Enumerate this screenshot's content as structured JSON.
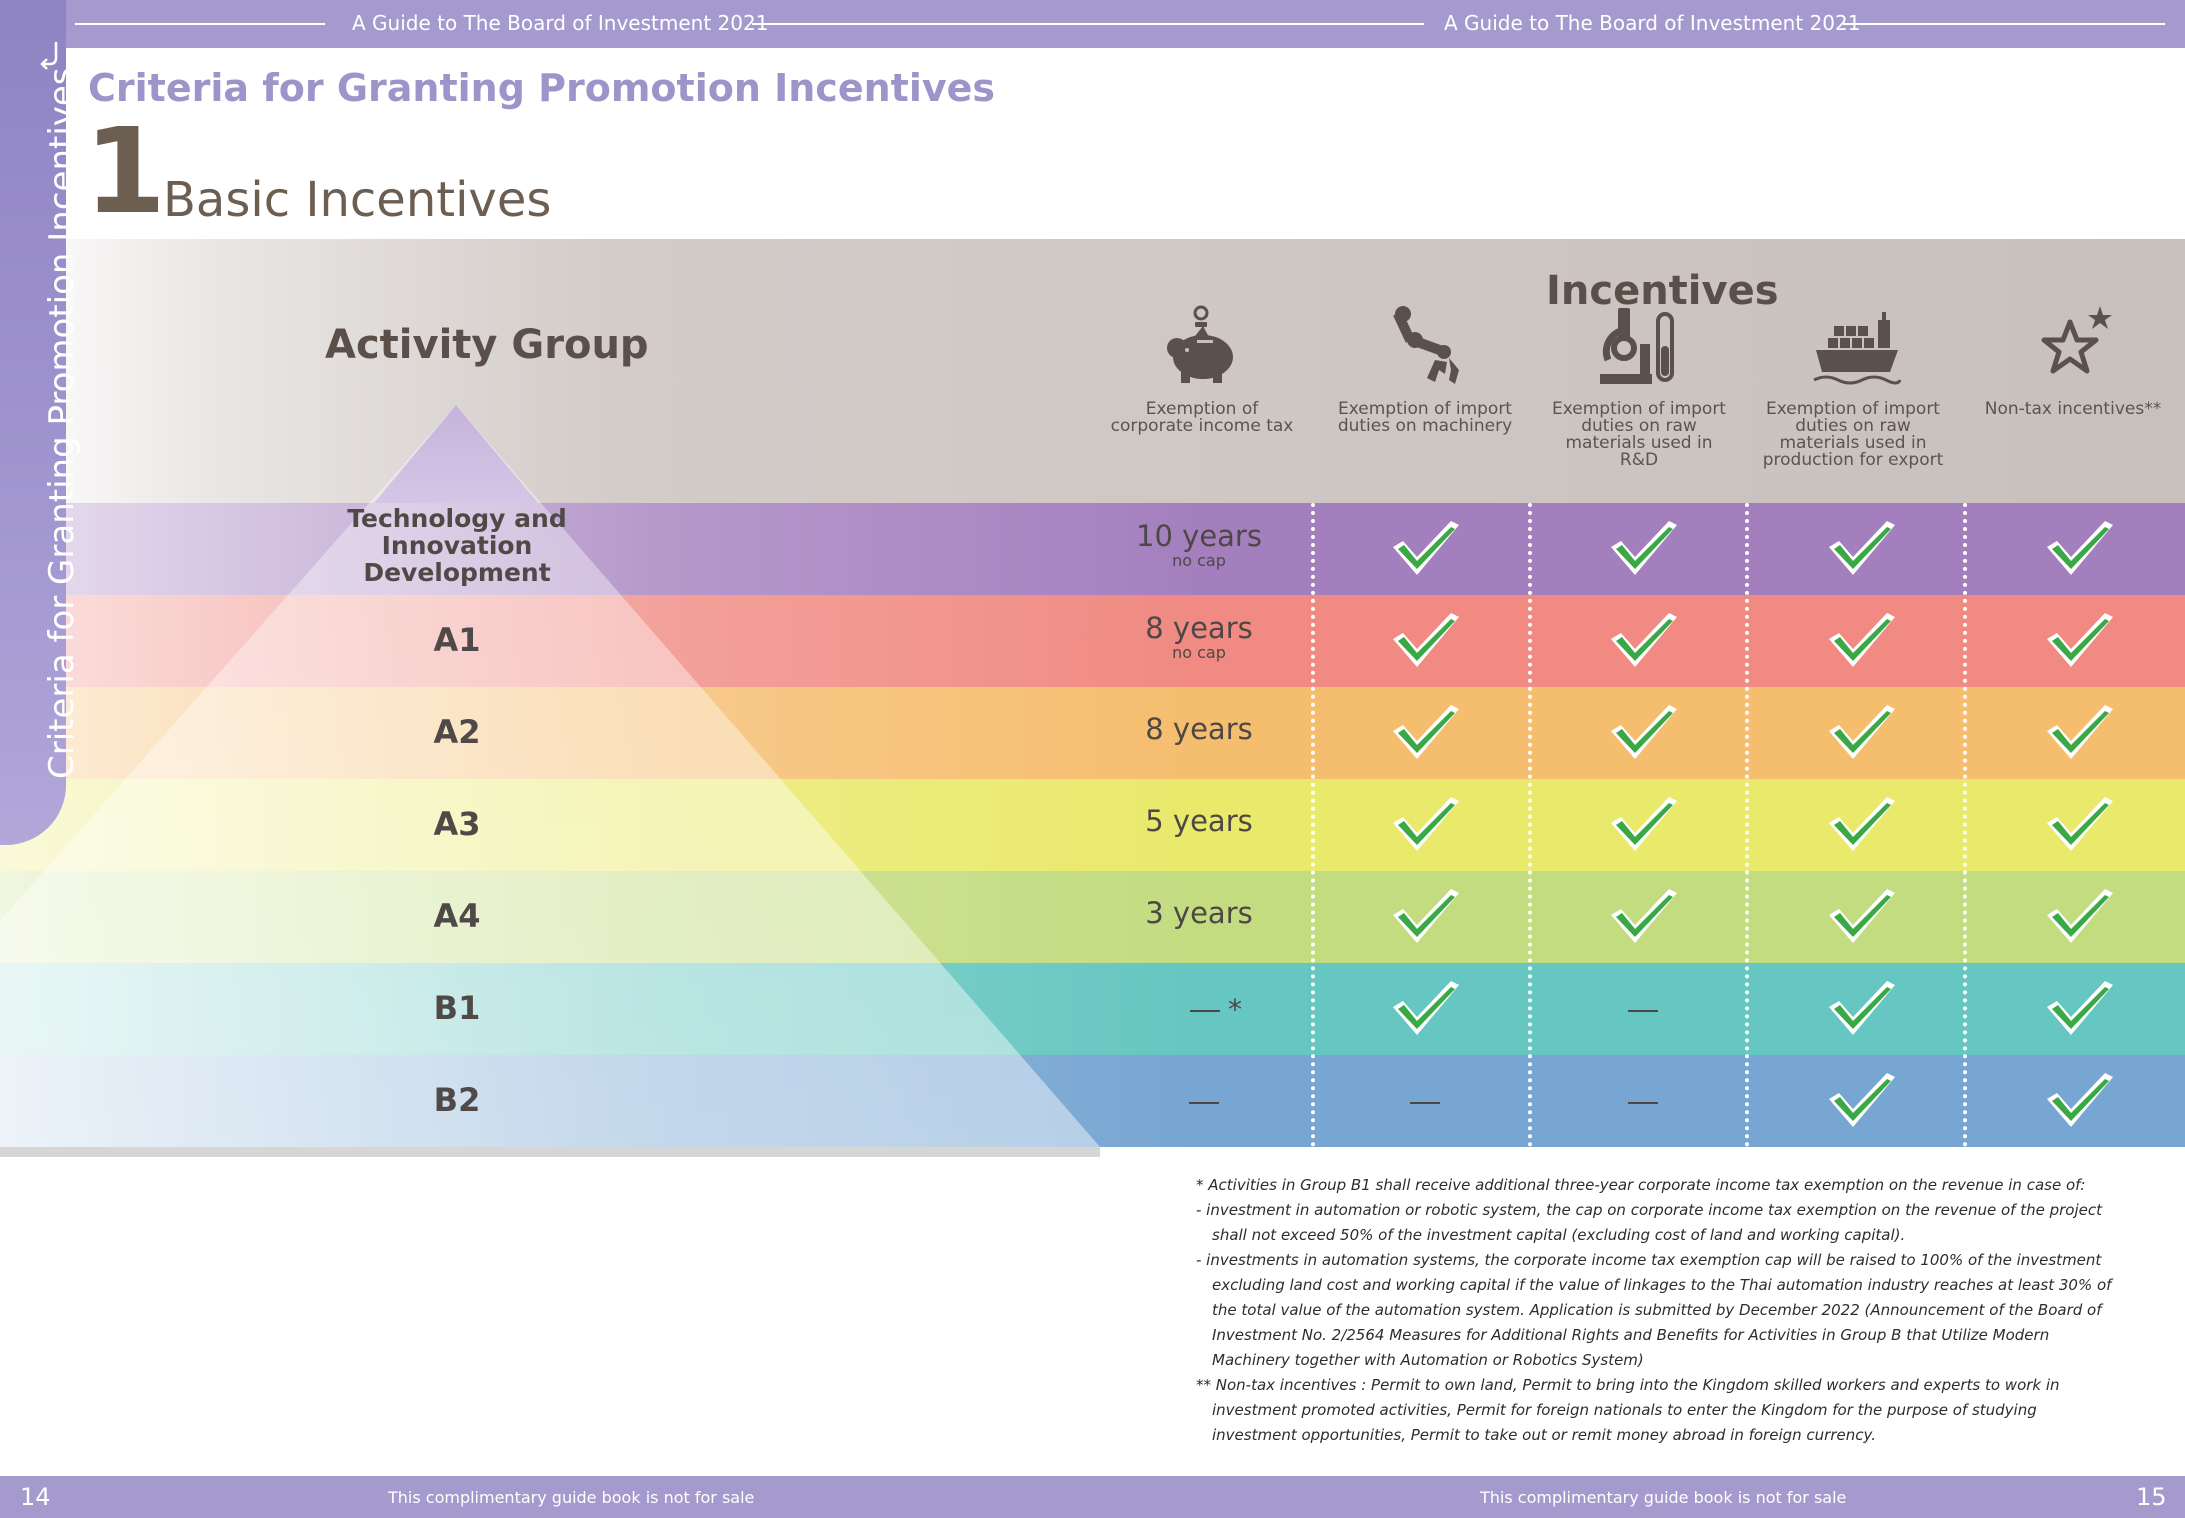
{
  "header": {
    "left_title": "A Guide to The Board of Investment 2021",
    "right_title": "A Guide to The Board of Investment 2021"
  },
  "side_tab": {
    "label": "Criteria for Granting Promotion Incentives"
  },
  "section_title": "Criteria for Granting Promotion Incentives",
  "subsection": {
    "number": "1",
    "title": "Basic Incentives"
  },
  "table": {
    "activity_group_title": "Activity Group",
    "incentives_title": "Incentives",
    "incentive_columns": [
      {
        "icon": "piggy-bank-icon",
        "label": "Exemption of corporate income tax"
      },
      {
        "icon": "robot-arm-icon",
        "label": "Exemption of import duties on machinery"
      },
      {
        "icon": "microscope-icon",
        "label": "Exemption of import duties on raw materials used in R&D"
      },
      {
        "icon": "cargo-ship-icon",
        "label": "Exemption of import duties on raw materials used in production for export"
      },
      {
        "icon": "stars-icon",
        "label": "Non-tax incentives**"
      }
    ],
    "rows": [
      {
        "group": "Technology and Innovation Development",
        "tax": "10 years",
        "cap": "no cap",
        "machinery": true,
        "rnd": true,
        "export": true,
        "nontax": true,
        "color": "#a47fbe"
      },
      {
        "group": "A1",
        "tax": "8 years",
        "cap": "no cap",
        "machinery": true,
        "rnd": true,
        "export": true,
        "nontax": true,
        "color": "#f08a82"
      },
      {
        "group": "A2",
        "tax": "8 years",
        "cap": "",
        "machinery": true,
        "rnd": true,
        "export": true,
        "nontax": true,
        "color": "#f5bd6e"
      },
      {
        "group": "A3",
        "tax": "5 years",
        "cap": "",
        "machinery": true,
        "rnd": true,
        "export": true,
        "nontax": true,
        "color": "#e9e96b"
      },
      {
        "group": "A4",
        "tax": "3 years",
        "cap": "",
        "machinery": true,
        "rnd": true,
        "export": true,
        "nontax": true,
        "color": "#c3dc80"
      },
      {
        "group": "B1",
        "tax": "—",
        "tax_mark": "*",
        "cap": "",
        "machinery": true,
        "rnd": false,
        "export": true,
        "nontax": true,
        "color": "#66c6c1"
      },
      {
        "group": "B2",
        "tax": "—",
        "cap": "",
        "machinery": false,
        "rnd": false,
        "export": true,
        "nontax": true,
        "color": "#77a6d2"
      }
    ]
  },
  "notes": [
    "* Activities in Group B1 shall receive additional three-year corporate income tax exemption on the revenue in case of:",
    "- investment in automation or robotic system, the cap on corporate income tax exemption on the revenue of the project shall not exceed 50% of the investment capital (excluding cost of land and working capital).",
    "- investments in automation systems, the corporate income tax exemption cap will be raised to 100% of the investment excluding land cost and working capital if the value of linkages to the Thai automation industry reaches at least 30% of the total value of the automation system. Application is submitted by December 2022 (Announcement of the Board of Investment No. 2/2564 Measures for Additional Rights and Benefits for Activities in Group B that Utilize Modern Machinery together with Automation or Robotics System)",
    "** Non-tax incentives : Permit to own land, Permit to bring into the Kingdom skilled workers and experts to work in investment promoted activities, Permit for foreign nationals to enter the Kingdom for the purpose of studying investment opportunities, Permit to take out or remit money abroad in foreign currency."
  ],
  "footer": {
    "left_page": "14",
    "left_note": "This complimentary guide book is not for sale",
    "right_note": "This complimentary guide book is not for sale",
    "right_page": "15"
  }
}
